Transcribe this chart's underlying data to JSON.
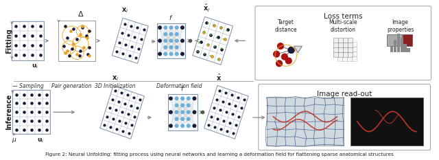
{
  "background_color": "#ffffff",
  "fitting_label": "Fitting",
  "inference_label": "Inference",
  "fitting_steps": [
    "Sampling",
    "Pair generation",
    "3D Initialization",
    "Deformation field"
  ],
  "loss_terms_title": "Loss terms",
  "loss_terms": [
    "Target\ndistance",
    "Multi-scale\ndistortion",
    "Image\nproperties"
  ],
  "image_readout_title": "Image read-out",
  "grid_color": "#7a8fa8",
  "dot_color": "#1a1a3a",
  "orange_color": "#e8a020",
  "network_color": "#6baed6",
  "green_color": "#5ab04a",
  "red_color": "#c0392b",
  "arrow_color": "#888888",
  "text_color": "#222222",
  "caption": "Figure 2: Neural Unfolding: fitting process using neural networks and learning a deformation field for flattening sparse anatomical structures",
  "label_fontsize": 6.5,
  "caption_fontsize": 5.2
}
